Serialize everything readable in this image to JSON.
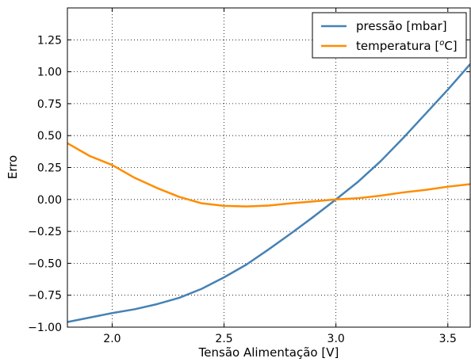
{
  "chart_data": {
    "type": "line",
    "xlabel": "Tensão Alimentação [V]",
    "ylabel": "Erro",
    "xlim": [
      1.8,
      3.6
    ],
    "ylim": [
      -1.0,
      1.5
    ],
    "grid": true,
    "legend_position": "top-right",
    "x_ticks": [
      2.0,
      2.5,
      3.0,
      3.5
    ],
    "x_tick_labels": [
      "2.0",
      "2.5",
      "3.0",
      "3.5"
    ],
    "y_ticks": [
      -1.0,
      -0.75,
      -0.5,
      -0.25,
      0.0,
      0.25,
      0.5,
      0.75,
      1.0,
      1.25
    ],
    "y_tick_labels": [
      "−1.00",
      "−0.75",
      "−0.50",
      "−0.25",
      "0.00",
      "0.25",
      "0.50",
      "0.75",
      "1.00",
      "1.25"
    ],
    "series": [
      {
        "name": "pressão [mbar]",
        "color": "#4682b4",
        "x": [
          1.8,
          1.9,
          2.0,
          2.1,
          2.2,
          2.3,
          2.4,
          2.5,
          2.6,
          2.7,
          2.8,
          2.9,
          3.0,
          3.1,
          3.2,
          3.3,
          3.4,
          3.5,
          3.6
        ],
        "y": [
          -0.96,
          -0.925,
          -0.89,
          -0.86,
          -0.82,
          -0.77,
          -0.7,
          -0.61,
          -0.51,
          -0.39,
          -0.265,
          -0.135,
          0.0,
          0.14,
          0.3,
          0.48,
          0.67,
          0.86,
          1.06
        ]
      },
      {
        "name": "temperatura [°C]",
        "legend_prefix": "temperatura [",
        "legend_superscript": "o",
        "legend_suffix": "C]",
        "color": "#ff8c00",
        "x": [
          1.8,
          1.9,
          2.0,
          2.1,
          2.2,
          2.3,
          2.4,
          2.5,
          2.6,
          2.7,
          2.8,
          2.9,
          3.0,
          3.1,
          3.2,
          3.3,
          3.4,
          3.5,
          3.6
        ],
        "y": [
          0.44,
          0.34,
          0.27,
          0.17,
          0.09,
          0.02,
          -0.03,
          -0.05,
          -0.055,
          -0.048,
          -0.03,
          -0.015,
          0.0,
          0.01,
          0.03,
          0.055,
          0.075,
          0.1,
          0.12
        ]
      }
    ]
  }
}
